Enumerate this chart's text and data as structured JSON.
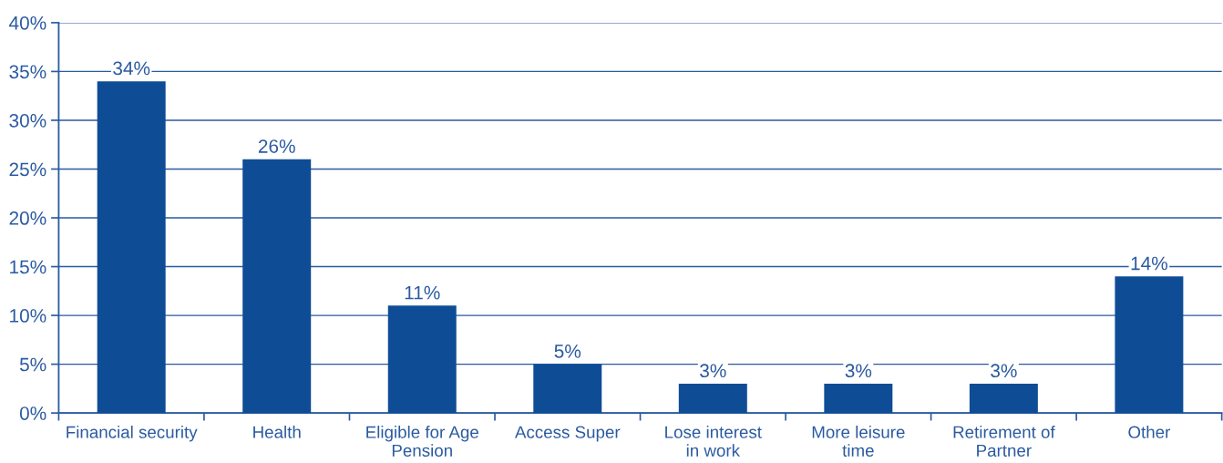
{
  "chart_data": {
    "type": "bar",
    "categories": [
      "Financial security",
      "Health",
      "Eligible for Age\nPension",
      "Access Super",
      "Lose interest\nin work",
      "More leisure\ntime",
      "Retirement of\nPartner",
      "Other"
    ],
    "values": [
      34,
      26,
      11,
      5,
      3,
      3,
      3,
      14
    ],
    "value_labels": [
      "34%",
      "26%",
      "11%",
      "5%",
      "3%",
      "3%",
      "3%",
      "14%"
    ],
    "color": "#0f4c96",
    "ylim": [
      0,
      40
    ],
    "yticks": [
      {
        "value": 0,
        "label": "0%"
      },
      {
        "value": 5,
        "label": "5%"
      },
      {
        "value": 10,
        "label": "10%"
      },
      {
        "value": 15,
        "label": "15%"
      },
      {
        "value": 20,
        "label": "20%"
      },
      {
        "value": 25,
        "label": "25%"
      },
      {
        "value": 30,
        "label": "30%"
      },
      {
        "value": 35,
        "label": "35%"
      },
      {
        "value": 40,
        "label": "40%"
      }
    ],
    "grid": "y"
  }
}
